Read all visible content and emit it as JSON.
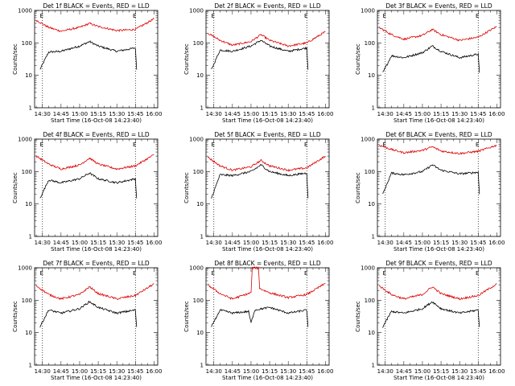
{
  "chart_data": [
    {
      "type": "line",
      "title": "Det 1f BLACK = Events, RED = LLD",
      "ylabel": "Counts/sec",
      "xlabel": "Start Time (16-Oct-08 14:23:40)",
      "ylim": [
        1,
        1000
      ],
      "yscale": "log",
      "x_tick_labels": [
        "14:30",
        "14:45",
        "15:00",
        "15:15",
        "15:30",
        "15:45",
        "16:00"
      ],
      "y_tick_labels": [
        "1",
        "10",
        "100",
        "1000"
      ],
      "markers": [
        "E",
        "E"
      ],
      "marker_times": [
        "14:30",
        "15:45"
      ],
      "series": [
        {
          "color": "#000000",
          "x_times": [
            "14:28",
            "14:35",
            "14:45",
            "15:00",
            "15:08",
            "15:15",
            "15:30",
            "15:45",
            "15:46"
          ],
          "values": [
            15,
            52,
            55,
            80,
            110,
            80,
            55,
            70,
            15
          ]
        },
        {
          "color": "#dd0000",
          "x_times": [
            "14:25",
            "14:35",
            "14:45",
            "15:00",
            "15:08",
            "15:15",
            "15:30",
            "15:45",
            "16:00"
          ],
          "values": [
            500,
            300,
            230,
            300,
            400,
            320,
            240,
            260,
            550
          ]
        }
      ]
    },
    {
      "type": "line",
      "title": "Det 2f BLACK = Events, RED = LLD",
      "ylabel": "Counts/sec",
      "xlabel": "Start Time (16-Oct-08 14:23:40)",
      "ylim": [
        1,
        1000
      ],
      "yscale": "log",
      "x_tick_labels": [
        "14:30",
        "14:45",
        "15:00",
        "15:15",
        "15:30",
        "15:45",
        "16:00"
      ],
      "y_tick_labels": [
        "1",
        "10",
        "100",
        "1000"
      ],
      "markers": [
        "E",
        "E"
      ],
      "marker_times": [
        "14:30",
        "15:45"
      ],
      "series": [
        {
          "color": "#000000",
          "x_times": [
            "14:28",
            "14:35",
            "14:45",
            "15:00",
            "15:08",
            "15:15",
            "15:30",
            "15:45",
            "15:46"
          ],
          "values": [
            15,
            60,
            55,
            80,
            120,
            80,
            55,
            70,
            15
          ]
        },
        {
          "color": "#dd0000",
          "x_times": [
            "14:25",
            "14:35",
            "14:45",
            "15:00",
            "15:08",
            "15:15",
            "15:30",
            "15:45",
            "16:00"
          ],
          "values": [
            200,
            120,
            85,
            110,
            180,
            120,
            80,
            100,
            220
          ]
        }
      ]
    },
    {
      "type": "line",
      "title": "Det 3f BLACK = Events, RED = LLD",
      "ylabel": "Counts/sec",
      "xlabel": "Start Time (16-Oct-08 14:23:40)",
      "ylim": [
        1,
        1000
      ],
      "yscale": "log",
      "x_tick_labels": [
        "14:30",
        "14:45",
        "15:00",
        "15:15",
        "15:30",
        "15:45",
        "16:00"
      ],
      "y_tick_labels": [
        "1",
        "10",
        "100",
        "1000"
      ],
      "markers": [
        "E",
        "E"
      ],
      "marker_times": [
        "14:30",
        "15:45"
      ],
      "series": [
        {
          "color": "#000000",
          "x_times": [
            "14:28",
            "14:35",
            "14:45",
            "15:00",
            "15:08",
            "15:15",
            "15:30",
            "15:45",
            "15:46"
          ],
          "values": [
            12,
            40,
            35,
            50,
            80,
            55,
            35,
            45,
            12
          ]
        },
        {
          "color": "#dd0000",
          "x_times": [
            "14:25",
            "14:35",
            "14:45",
            "15:00",
            "15:08",
            "15:15",
            "15:30",
            "15:45",
            "16:00"
          ],
          "values": [
            300,
            180,
            130,
            170,
            260,
            180,
            120,
            150,
            320
          ]
        }
      ]
    },
    {
      "type": "line",
      "title": "Det 4f BLACK = Events, RED = LLD",
      "ylabel": "Counts/sec",
      "xlabel": "Start Time (16-Oct-08 14:23:40)",
      "ylim": [
        1,
        1000
      ],
      "yscale": "log",
      "x_tick_labels": [
        "14:30",
        "14:45",
        "15:00",
        "15:15",
        "15:30",
        "15:45",
        "16:00"
      ],
      "y_tick_labels": [
        "1",
        "10",
        "100",
        "1000"
      ],
      "markers": [
        "E",
        "E"
      ],
      "marker_times": [
        "14:30",
        "15:45"
      ],
      "series": [
        {
          "color": "#000000",
          "x_times": [
            "14:28",
            "14:35",
            "14:45",
            "15:00",
            "15:08",
            "15:15",
            "15:30",
            "15:45",
            "15:46"
          ],
          "values": [
            15,
            55,
            45,
            60,
            90,
            60,
            45,
            60,
            15
          ]
        },
        {
          "color": "#dd0000",
          "x_times": [
            "14:25",
            "14:35",
            "14:45",
            "15:00",
            "15:08",
            "15:15",
            "15:30",
            "15:45",
            "16:00"
          ],
          "values": [
            300,
            170,
            120,
            160,
            260,
            170,
            120,
            150,
            330
          ]
        }
      ]
    },
    {
      "type": "line",
      "title": "Det 5f BLACK = Events, RED = LLD",
      "ylabel": "Counts/sec",
      "xlabel": "Start Time (16-Oct-08 14:23:40)",
      "ylim": [
        1,
        1000
      ],
      "yscale": "log",
      "x_tick_labels": [
        "14:30",
        "14:45",
        "15:00",
        "15:15",
        "15:30",
        "15:45",
        "16:00"
      ],
      "y_tick_labels": [
        "1",
        "10",
        "100",
        "1000"
      ],
      "markers": [
        "E",
        "E"
      ],
      "marker_times": [
        "14:30",
        "15:45"
      ],
      "series": [
        {
          "color": "#000000",
          "x_times": [
            "14:28",
            "14:35",
            "14:45",
            "15:00",
            "15:08",
            "15:15",
            "15:30",
            "15:45",
            "15:46"
          ],
          "values": [
            15,
            80,
            75,
            100,
            160,
            100,
            75,
            90,
            15
          ]
        },
        {
          "color": "#dd0000",
          "x_times": [
            "14:25",
            "14:35",
            "14:45",
            "15:00",
            "15:08",
            "15:15",
            "15:30",
            "15:45",
            "16:00"
          ],
          "values": [
            280,
            150,
            110,
            140,
            220,
            150,
            110,
            130,
            300
          ]
        }
      ]
    },
    {
      "type": "line",
      "title": "Det 6f BLACK = Events, RED = LLD",
      "ylabel": "Counts/sec",
      "xlabel": "Start Time (16-Oct-08 14:23:40)",
      "ylim": [
        1,
        1000
      ],
      "yscale": "log",
      "x_tick_labels": [
        "14:30",
        "14:45",
        "15:00",
        "15:15",
        "15:30",
        "15:45",
        "16:00"
      ],
      "y_tick_labels": [
        "1",
        "10",
        "100",
        "1000"
      ],
      "markers": [
        "E",
        "E"
      ],
      "marker_times": [
        "14:30",
        "15:45"
      ],
      "series": [
        {
          "color": "#000000",
          "x_times": [
            "14:28",
            "14:35",
            "14:45",
            "15:00",
            "15:08",
            "15:15",
            "15:30",
            "15:45",
            "15:46"
          ],
          "values": [
            20,
            90,
            80,
            100,
            160,
            110,
            85,
            95,
            20
          ]
        },
        {
          "color": "#dd0000",
          "x_times": [
            "14:25",
            "14:35",
            "14:45",
            "15:00",
            "15:08",
            "15:15",
            "15:30",
            "15:45",
            "16:00"
          ],
          "values": [
            650,
            480,
            380,
            450,
            580,
            430,
            360,
            420,
            650
          ]
        }
      ]
    },
    {
      "type": "line",
      "title": "Det 7f BLACK = Events, RED = LLD",
      "ylabel": "Counts/sec",
      "xlabel": "Start Time (16-Oct-08 14:23:40)",
      "ylim": [
        1,
        1000
      ],
      "yscale": "log",
      "x_tick_labels": [
        "14:30",
        "14:45",
        "15:00",
        "15:15",
        "15:30",
        "15:45",
        "16:00"
      ],
      "y_tick_labels": [
        "1",
        "10",
        "100",
        "1000"
      ],
      "markers": [
        "E",
        "E"
      ],
      "marker_times": [
        "14:30",
        "15:45"
      ],
      "series": [
        {
          "color": "#000000",
          "x_times": [
            "14:28",
            "14:35",
            "14:45",
            "15:00",
            "15:08",
            "15:15",
            "15:30",
            "15:45",
            "15:46"
          ],
          "values": [
            15,
            50,
            40,
            55,
            90,
            60,
            40,
            50,
            15
          ]
        },
        {
          "color": "#dd0000",
          "x_times": [
            "14:25",
            "14:35",
            "14:45",
            "15:00",
            "15:08",
            "15:15",
            "15:30",
            "15:45",
            "16:00"
          ],
          "values": [
            280,
            150,
            110,
            150,
            260,
            160,
            110,
            140,
            320
          ]
        }
      ]
    },
    {
      "type": "line",
      "title": "Det 8f BLACK = Events, RED = LLD",
      "ylabel": "Counts/sec",
      "xlabel": "Start Time (16-Oct-08 14:23:40)",
      "ylim": [
        1,
        1000
      ],
      "yscale": "log",
      "x_tick_labels": [
        "14:30",
        "14:45",
        "15:00",
        "15:15",
        "15:30",
        "15:45",
        "16:00"
      ],
      "y_tick_labels": [
        "1",
        "10",
        "100",
        "1000"
      ],
      "markers": [
        "E",
        "E"
      ],
      "marker_times": [
        "14:30",
        "15:45"
      ],
      "series": [
        {
          "color": "#000000",
          "x_times": [
            "14:28",
            "14:35",
            "14:45",
            "14:58",
            "15:00",
            "15:03",
            "15:15",
            "15:30",
            "15:45",
            "15:46"
          ],
          "values": [
            15,
            50,
            40,
            45,
            20,
            50,
            60,
            40,
            50,
            15
          ]
        },
        {
          "color": "#dd0000",
          "x_times": [
            "14:25",
            "14:35",
            "14:45",
            "15:00",
            "15:01",
            "15:06",
            "15:07",
            "15:15",
            "15:30",
            "15:45",
            "16:00"
          ],
          "values": [
            300,
            160,
            110,
            170,
            1000,
            1000,
            230,
            170,
            120,
            150,
            330
          ]
        }
      ]
    },
    {
      "type": "line",
      "title": "Det 9f BLACK = Events, RED = LLD",
      "ylabel": "Counts/sec",
      "xlabel": "Start Time (16-Oct-08 14:23:40)",
      "ylim": [
        1,
        1000
      ],
      "yscale": "log",
      "x_tick_labels": [
        "14:30",
        "14:45",
        "15:00",
        "15:15",
        "15:30",
        "15:45",
        "16:00"
      ],
      "y_tick_labels": [
        "1",
        "10",
        "100",
        "1000"
      ],
      "markers": [
        "E",
        "E"
      ],
      "marker_times": [
        "14:30",
        "15:45"
      ],
      "series": [
        {
          "color": "#000000",
          "x_times": [
            "14:28",
            "14:35",
            "14:45",
            "15:00",
            "15:08",
            "15:15",
            "15:30",
            "15:45",
            "15:46"
          ],
          "values": [
            15,
            45,
            40,
            55,
            90,
            55,
            40,
            50,
            15
          ]
        },
        {
          "color": "#dd0000",
          "x_times": [
            "14:25",
            "14:35",
            "14:45",
            "15:00",
            "15:08",
            "15:15",
            "15:30",
            "15:45",
            "16:00"
          ],
          "values": [
            280,
            150,
            110,
            150,
            260,
            160,
            110,
            140,
            320
          ]
        }
      ]
    }
  ]
}
